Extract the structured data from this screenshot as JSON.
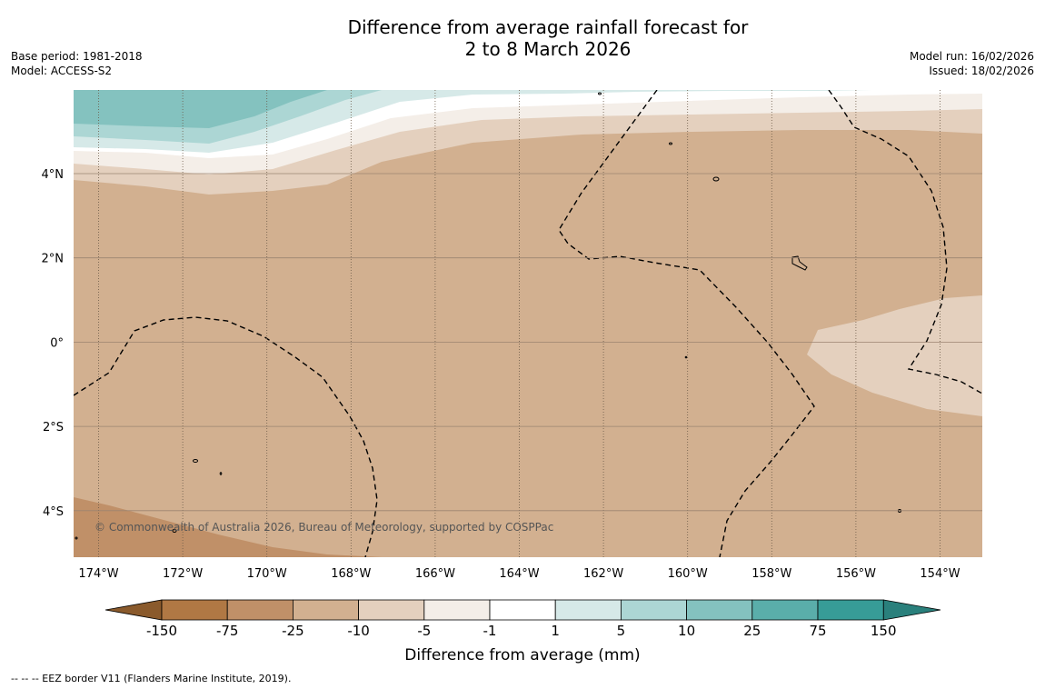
{
  "title": {
    "line1": "Difference from average rainfall forecast for",
    "line2": "2 to 8 March 2026"
  },
  "meta_left": {
    "base_period": "Base period: 1981-2018",
    "model": "Model: ACCESS-S2"
  },
  "meta_right": {
    "model_run": "Model run: 16/02/2026",
    "issued": "Issued: 18/02/2026"
  },
  "map": {
    "lon_labels": [
      "174°W",
      "172°W",
      "170°W",
      "168°W",
      "166°W",
      "164°W",
      "162°W",
      "160°W",
      "158°W",
      "156°W",
      "154°W"
    ],
    "lat_labels": [
      "4°N",
      "2°N",
      "0°",
      "2°S",
      "4°S"
    ],
    "copyright": "© Commonwealth of Australia 2026, Bureau of Meteorology, supported by COSPPac"
  },
  "colorbar": {
    "ticks": [
      "-150",
      "-75",
      "-25",
      "-10",
      "-5",
      "-1",
      "1",
      "5",
      "10",
      "25",
      "75",
      "150"
    ],
    "colors": [
      "#b07844",
      "#c09068",
      "#d2b090",
      "#e4d0be",
      "#f4eee8",
      "#ffffff",
      "#d6e9e8",
      "#acd6d4",
      "#84c2bf",
      "#5aaeaa",
      "#379c97"
    ],
    "extend_low_color": "#8a5a2c",
    "extend_high_color": "#2a807c",
    "label": "Difference from average (mm)"
  },
  "footer": "--  --  -- EEZ border V11 (Flanders Marine Institute, 2019)."
}
